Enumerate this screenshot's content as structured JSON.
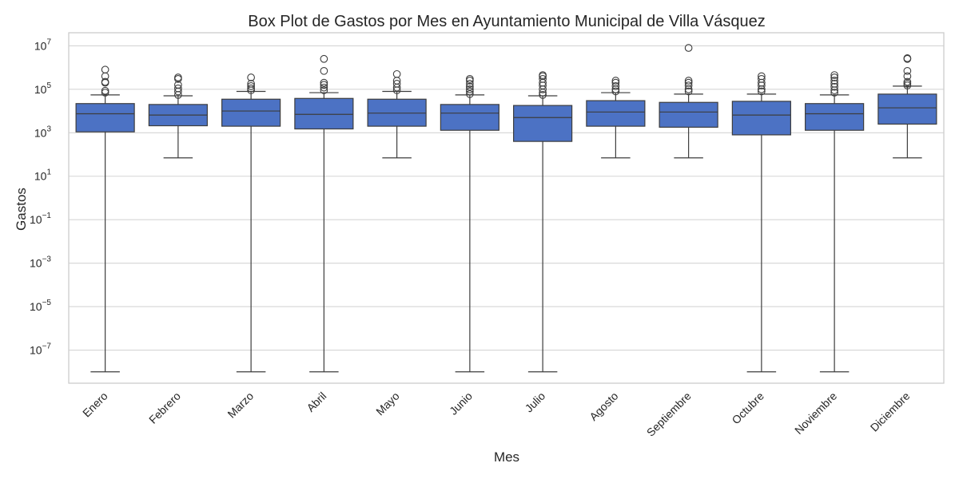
{
  "chart_data": {
    "type": "box",
    "title": "Box Plot de Gastos por Mes en Ayuntamiento Municipal de Villa Vásquez",
    "xlabel": "Mes",
    "ylabel": "Gastos",
    "yscale": "log",
    "ylim": [
      3e-09,
      40000000.0
    ],
    "yticks": [
      {
        "base": "10",
        "exp": "7",
        "value": 10000000.0
      },
      {
        "base": "10",
        "exp": "5",
        "value": 100000.0
      },
      {
        "base": "10",
        "exp": "3",
        "value": 1000.0
      },
      {
        "base": "10",
        "exp": "1",
        "value": 10.0
      },
      {
        "base": "10",
        "exp": "−1",
        "value": 0.1
      },
      {
        "base": "10",
        "exp": "−3",
        "value": 0.001
      },
      {
        "base": "10",
        "exp": "−5",
        "value": 1e-05
      },
      {
        "base": "10",
        "exp": "−7",
        "value": 1e-07
      }
    ],
    "grid": true,
    "box_color": "#4c72c4",
    "line_color": "#3d3d3d",
    "categories": [
      "Enero",
      "Febrero",
      "Marzo",
      "Abril",
      "Mayo",
      "Junio",
      "Julio",
      "Agosto",
      "Septiembre",
      "Octubre",
      "Noviembre",
      "Diciembre"
    ],
    "boxes": [
      {
        "whisker_low": 1e-08,
        "q1": 1100,
        "median": 7500,
        "q3": 22000,
        "whisker_high": 55000,
        "outliers": [
          70000,
          85000,
          200000,
          220000,
          400000,
          800000
        ]
      },
      {
        "whisker_low": 70,
        "q1": 2100,
        "median": 6500,
        "q3": 20000,
        "whisker_high": 50000,
        "outliers": [
          55000,
          80000,
          110000,
          160000,
          300000,
          350000
        ]
      },
      {
        "whisker_low": 1e-08,
        "q1": 2000,
        "median": 10000,
        "q3": 35000,
        "whisker_high": 80000,
        "outliers": [
          90000,
          110000,
          140000,
          180000,
          350000
        ]
      },
      {
        "whisker_low": 1e-08,
        "q1": 1500,
        "median": 7000,
        "q3": 38000,
        "whisker_high": 70000,
        "outliers": [
          90000,
          120000,
          160000,
          200000,
          700000,
          2500000
        ]
      },
      {
        "whisker_low": 70,
        "q1": 2000,
        "median": 8000,
        "q3": 35000,
        "whisker_high": 80000,
        "outliers": [
          90000,
          120000,
          180000,
          250000,
          500000
        ]
      },
      {
        "whisker_low": 1e-08,
        "q1": 1300,
        "median": 8000,
        "q3": 20000,
        "whisker_high": 55000,
        "outliers": [
          60000,
          80000,
          100000,
          130000,
          180000,
          250000,
          300000
        ]
      },
      {
        "whisker_low": 1e-08,
        "q1": 400,
        "median": 5000,
        "q3": 18000,
        "whisker_high": 50000,
        "outliers": [
          55000,
          70000,
          100000,
          150000,
          200000,
          300000,
          400000,
          450000
        ]
      },
      {
        "whisker_low": 70,
        "q1": 2000,
        "median": 9000,
        "q3": 30000,
        "whisker_high": 70000,
        "outliers": [
          80000,
          100000,
          140000,
          200000,
          250000
        ]
      },
      {
        "whisker_low": 70,
        "q1": 1800,
        "median": 9000,
        "q3": 25000,
        "whisker_high": 60000,
        "outliers": [
          80000,
          100000,
          150000,
          200000,
          250000,
          8000000
        ]
      },
      {
        "whisker_low": 1e-08,
        "q1": 800,
        "median": 6500,
        "q3": 28000,
        "whisker_high": 60000,
        "outliers": [
          80000,
          100000,
          150000,
          200000,
          300000,
          400000
        ]
      },
      {
        "whisker_low": 1e-08,
        "q1": 1300,
        "median": 7500,
        "q3": 22000,
        "whisker_high": 55000,
        "outliers": [
          70000,
          90000,
          130000,
          180000,
          250000,
          350000,
          450000
        ]
      },
      {
        "whisker_low": 70,
        "q1": 2500,
        "median": 14000,
        "q3": 60000,
        "whisker_high": 140000,
        "outliers": [
          150000,
          180000,
          220000,
          400000,
          700000,
          2500000,
          2700000
        ]
      }
    ]
  }
}
